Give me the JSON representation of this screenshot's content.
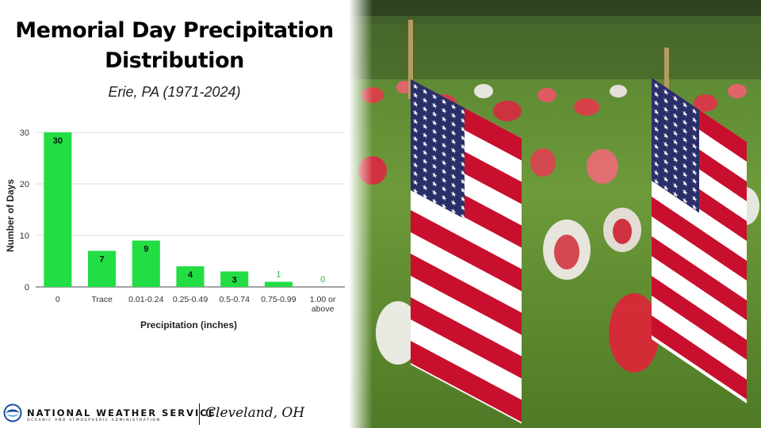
{
  "header": {
    "title_line1": "Memorial Day Precipitation",
    "title_line2": "Distribution",
    "subtitle": "Erie, PA (1971-2024)"
  },
  "chart_data": {
    "type": "bar",
    "title": "Memorial Day Precipitation Distribution",
    "subtitle": "Erie, PA (1971-2024)",
    "xlabel": "Precipitation (inches)",
    "ylabel": "Number of Days",
    "categories": [
      "0",
      "Trace",
      "0.01-0.24",
      "0.25-0.49",
      "0.5-0.74",
      "0.75-0.99",
      "1.00 or above"
    ],
    "category_lines": [
      [
        "0"
      ],
      [
        "Trace"
      ],
      [
        "0.01-0.24"
      ],
      [
        "0.25-0.49"
      ],
      [
        "0.5-0.74"
      ],
      [
        "0.75-0.99"
      ],
      [
        "1.00 or",
        "above"
      ]
    ],
    "values": [
      30,
      7,
      9,
      4,
      3,
      1,
      0
    ],
    "ylim": [
      0,
      30
    ],
    "yticks": [
      0,
      10,
      20,
      30
    ],
    "grid": true,
    "bar_color": "#22dd44",
    "label_color_outside": "#22bb44"
  },
  "footer": {
    "org_name": "NATIONAL WEATHER SERVICE",
    "org_sub": "OCEANIC AND ATMOSPHERIC ADMINISTRATION",
    "office": "Cleveland, OH",
    "logo_icon": "noaa-logo-icon"
  },
  "photo": {
    "subject_icon": "american-flags-photo"
  }
}
